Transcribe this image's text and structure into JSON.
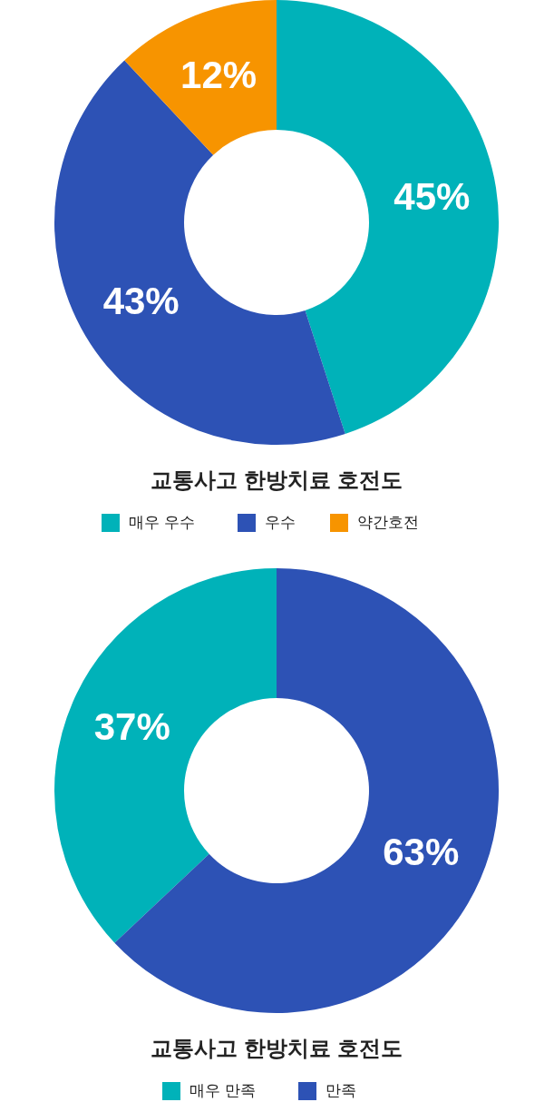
{
  "chart_data": [
    {
      "type": "donut",
      "title": "교통사고 한방치료 호전도",
      "categories": [
        "매우 우수",
        "우수",
        "약간호전"
      ],
      "values": [
        45,
        43,
        12
      ],
      "colors": [
        "#00b2b9",
        "#2d52b5",
        "#f79400"
      ],
      "value_labels": [
        "45%",
        "43%",
        "12%"
      ],
      "legend": "bottom"
    },
    {
      "type": "donut",
      "title": "교통사고 한방치료 호전도",
      "categories": [
        "매우 만족",
        "만족"
      ],
      "values": [
        37,
        63
      ],
      "colors": [
        "#00b2b9",
        "#2d52b5"
      ],
      "value_labels": [
        "37%",
        "63%"
      ],
      "legend": "bottom"
    }
  ]
}
